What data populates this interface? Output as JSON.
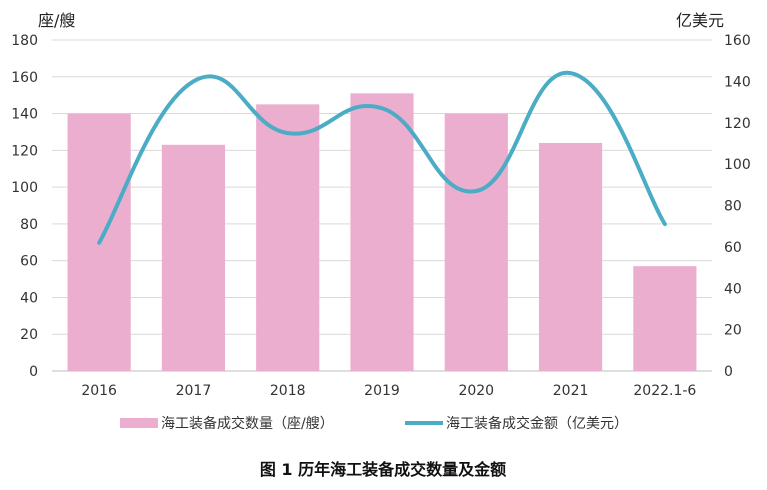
{
  "chart_data": {
    "type": "bar+line",
    "categories": [
      "2016",
      "2017",
      "2018",
      "2019",
      "2020",
      "2021",
      "2022.1-6"
    ],
    "series": [
      {
        "name": "海工装备成交数量（座/艘）",
        "type": "bar",
        "axis": "left",
        "color": "#EBAECE",
        "values": [
          140,
          123,
          145,
          151,
          140,
          124,
          57
        ]
      },
      {
        "name": "海工装备成交金额（亿美元）",
        "type": "line",
        "axis": "right",
        "color": "#4BACC6",
        "smooth": true,
        "values": [
          62,
          140,
          115,
          127,
          87,
          144,
          71
        ]
      }
    ],
    "left_axis": {
      "unit": "座/艘",
      "range": [
        0,
        180
      ],
      "ticks": [
        "0",
        "20",
        "40",
        "60",
        "80",
        "100",
        "120",
        "140",
        "160",
        "180"
      ]
    },
    "right_axis": {
      "unit": "亿美元",
      "range": [
        0,
        160
      ],
      "ticks": [
        "0",
        "20",
        "40",
        "60",
        "80",
        "100",
        "120",
        "140",
        "160"
      ]
    },
    "grid": true,
    "legend_position": "bottom",
    "caption": "图 1  历年海工装备成交数量及金额"
  }
}
